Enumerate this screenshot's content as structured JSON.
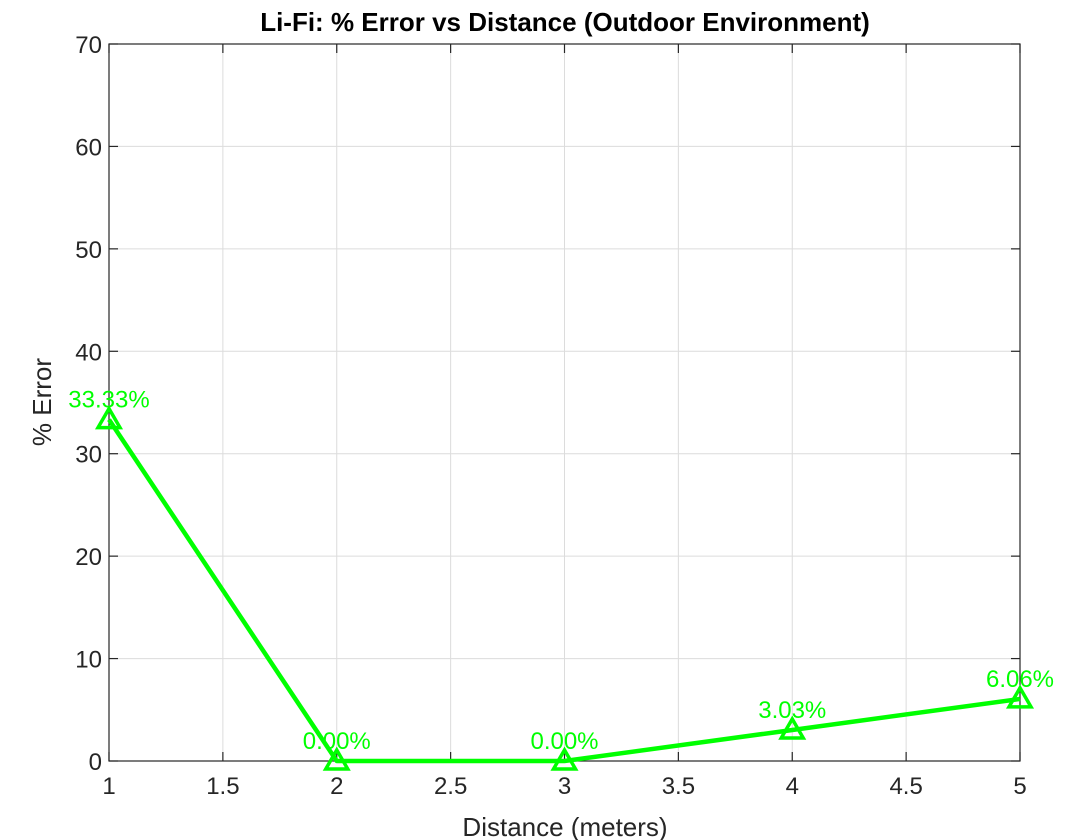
{
  "chart_data": {
    "type": "line",
    "title": "Li-Fi: % Error vs Distance (Outdoor Environment)",
    "xlabel": "Distance (meters)",
    "ylabel": "% Error",
    "xlim": [
      1,
      5
    ],
    "ylim": [
      0,
      70
    ],
    "xticks": [
      1,
      1.5,
      2,
      2.5,
      3,
      3.5,
      4,
      4.5,
      5
    ],
    "yticks": [
      0,
      10,
      20,
      30,
      40,
      50,
      60,
      70
    ],
    "xtick_labels": [
      "1",
      "1.5",
      "2",
      "2.5",
      "3",
      "3.5",
      "4",
      "4.5",
      "5"
    ],
    "ytick_labels": [
      "0",
      "10",
      "20",
      "30",
      "40",
      "50",
      "60",
      "70"
    ],
    "grid": true,
    "series": [
      {
        "x": [
          1,
          2,
          3,
          4,
          5
        ],
        "y": [
          33.33,
          0.0,
          0.0,
          3.03,
          6.06
        ],
        "labels": [
          "33.33%",
          "0.00%",
          "0.00%",
          "3.03%",
          "6.06%"
        ],
        "color": "#00ff00",
        "marker": "triangle"
      }
    ]
  }
}
